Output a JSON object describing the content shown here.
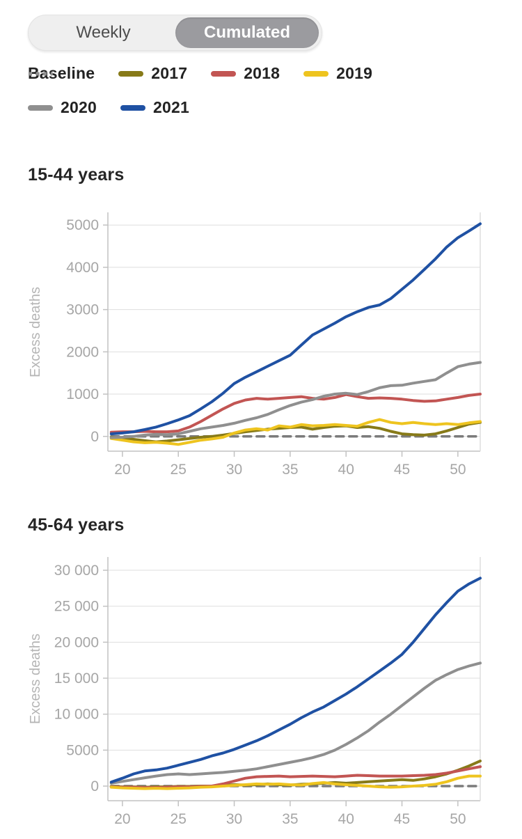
{
  "toggle": {
    "options": [
      {
        "label": "Weekly",
        "selected": false
      },
      {
        "label": "Cumulated",
        "selected": true
      }
    ]
  },
  "legend": {
    "items": [
      {
        "label": "Baseline",
        "color": "#8f8f8f",
        "dashed": true
      },
      {
        "label": "2017",
        "color": "#877a18",
        "dashed": false
      },
      {
        "label": "2018",
        "color": "#c25553",
        "dashed": false
      },
      {
        "label": "2019",
        "color": "#eec41f",
        "dashed": false
      },
      {
        "label": "2020",
        "color": "#8f8f8f",
        "dashed": false
      },
      {
        "label": "2021",
        "color": "#1f51a3",
        "dashed": false
      }
    ]
  },
  "colors": {
    "grid": "#dedede",
    "axis": "#c2c2c2",
    "tick_text": "#a6a6a6",
    "axis_label_text": "#b5b5b5",
    "baseline": "#7b7b7b",
    "title_text": "#252525",
    "toggle_selected_bg": "#9b9b9f",
    "toggle_selected_text": "#ffffff"
  },
  "chart_data": [
    {
      "type": "line",
      "title": "15-44 years",
      "ylabel": "Excess deaths",
      "xlabel": "",
      "grid": true,
      "legend_position": "top",
      "x": [
        19,
        20,
        21,
        22,
        23,
        24,
        25,
        26,
        27,
        28,
        29,
        30,
        31,
        32,
        33,
        34,
        35,
        36,
        37,
        38,
        39,
        40,
        41,
        42,
        43,
        44,
        45,
        46,
        47,
        48,
        49,
        50,
        51,
        52
      ],
      "xlim": [
        18.7,
        52
      ],
      "x_ticks": [
        20,
        25,
        30,
        35,
        40,
        45,
        50
      ],
      "ylim": [
        -350,
        5300
      ],
      "y_ticks": [
        {
          "value": 0,
          "label": "0"
        },
        {
          "value": 1000,
          "label": "1000"
        },
        {
          "value": 2000,
          "label": "2000"
        },
        {
          "value": 3000,
          "label": "3000"
        },
        {
          "value": 4000,
          "label": "4000"
        },
        {
          "value": 5000,
          "label": "5000"
        }
      ],
      "series": [
        {
          "name": "Baseline",
          "color": "#7b7b7b",
          "dashed": true,
          "width": 3.5,
          "values": [
            0,
            0,
            0,
            0,
            0,
            0,
            0,
            0,
            0,
            0,
            0,
            0,
            0,
            0,
            0,
            0,
            0,
            0,
            0,
            0,
            0,
            0,
            0,
            0,
            0,
            0,
            0,
            0,
            0,
            0,
            0,
            0,
            0,
            0
          ]
        },
        {
          "name": "2017",
          "color": "#877a18",
          "dashed": false,
          "width": 4,
          "values": [
            -20,
            -40,
            -70,
            -100,
            -130,
            -110,
            -80,
            -50,
            -20,
            0,
            30,
            70,
            110,
            140,
            170,
            190,
            210,
            220,
            170,
            210,
            240,
            250,
            210,
            230,
            190,
            120,
            60,
            40,
            30,
            60,
            130,
            210,
            290,
            330
          ]
        },
        {
          "name": "2018",
          "color": "#c25553",
          "dashed": false,
          "width": 4,
          "values": [
            100,
            110,
            110,
            120,
            110,
            110,
            130,
            220,
            350,
            500,
            650,
            780,
            860,
            900,
            880,
            900,
            920,
            940,
            900,
            880,
            920,
            990,
            940,
            900,
            910,
            900,
            880,
            850,
            830,
            840,
            880,
            920,
            970,
            1000
          ]
        },
        {
          "name": "2019",
          "color": "#eec41f",
          "dashed": false,
          "width": 4,
          "values": [
            -50,
            -90,
            -130,
            -150,
            -140,
            -160,
            -190,
            -140,
            -90,
            -60,
            -20,
            80,
            150,
            180,
            150,
            250,
            220,
            280,
            250,
            260,
            280,
            260,
            240,
            330,
            400,
            330,
            300,
            330,
            300,
            280,
            300,
            280,
            320,
            350
          ]
        },
        {
          "name": "2020",
          "color": "#8f8f8f",
          "dashed": false,
          "width": 4,
          "values": [
            -30,
            -20,
            0,
            30,
            50,
            40,
            60,
            120,
            180,
            220,
            260,
            310,
            380,
            440,
            520,
            630,
            730,
            810,
            870,
            950,
            1000,
            1020,
            990,
            1060,
            1150,
            1200,
            1210,
            1260,
            1300,
            1340,
            1500,
            1650,
            1710,
            1750
          ]
        },
        {
          "name": "2021",
          "color": "#1f51a3",
          "dashed": false,
          "width": 4,
          "values": [
            60,
            80,
            110,
            160,
            220,
            300,
            390,
            490,
            650,
            820,
            1020,
            1250,
            1400,
            1530,
            1660,
            1790,
            1920,
            2160,
            2400,
            2540,
            2680,
            2830,
            2950,
            3050,
            3110,
            3260,
            3480,
            3700,
            3950,
            4200,
            4480,
            4700,
            4860,
            5030
          ]
        }
      ]
    },
    {
      "type": "line",
      "title": "45-64 years",
      "ylabel": "Excess deaths",
      "xlabel": "",
      "grid": true,
      "legend_position": "top",
      "x": [
        19,
        20,
        21,
        22,
        23,
        24,
        25,
        26,
        27,
        28,
        29,
        30,
        31,
        32,
        33,
        34,
        35,
        36,
        37,
        38,
        39,
        40,
        41,
        42,
        43,
        44,
        45,
        46,
        47,
        48,
        49,
        50,
        51,
        52
      ],
      "xlim": [
        18.7,
        52
      ],
      "x_ticks": [
        20,
        25,
        30,
        35,
        40,
        45,
        50
      ],
      "ylim": [
        -2030,
        31840
      ],
      "y_ticks": [
        {
          "value": 0,
          "label": "0"
        },
        {
          "value": 5000,
          "label": "5000"
        },
        {
          "value": 10000,
          "label": "10 000"
        },
        {
          "value": 15000,
          "label": "15 000"
        },
        {
          "value": 20000,
          "label": "20 000"
        },
        {
          "value": 25000,
          "label": "25 000"
        },
        {
          "value": 30000,
          "label": "30 000"
        }
      ],
      "series": [
        {
          "name": "Baseline",
          "color": "#7b7b7b",
          "dashed": true,
          "width": 3.5,
          "values": [
            0,
            0,
            0,
            0,
            0,
            0,
            0,
            0,
            0,
            0,
            0,
            0,
            0,
            0,
            0,
            0,
            0,
            0,
            0,
            0,
            0,
            0,
            0,
            0,
            0,
            0,
            0,
            0,
            0,
            0,
            0,
            0,
            0,
            0
          ]
        },
        {
          "name": "2017",
          "color": "#877a18",
          "dashed": false,
          "width": 4,
          "values": [
            -50,
            -100,
            -100,
            -150,
            -100,
            -100,
            -50,
            -50,
            0,
            0,
            100,
            200,
            150,
            200,
            300,
            200,
            150,
            250,
            300,
            400,
            500,
            400,
            500,
            600,
            700,
            800,
            900,
            800,
            1000,
            1300,
            1700,
            2200,
            2800,
            3500
          ]
        },
        {
          "name": "2018",
          "color": "#c25553",
          "dashed": false,
          "width": 4,
          "values": [
            -100,
            -150,
            -150,
            -200,
            -200,
            -150,
            -100,
            -100,
            -50,
            0,
            300,
            700,
            1100,
            1300,
            1350,
            1400,
            1300,
            1350,
            1400,
            1350,
            1300,
            1400,
            1500,
            1450,
            1400,
            1400,
            1400,
            1450,
            1500,
            1600,
            1800,
            2100,
            2400,
            2700
          ]
        },
        {
          "name": "2019",
          "color": "#eec41f",
          "dashed": false,
          "width": 4,
          "values": [
            -150,
            -250,
            -300,
            -350,
            -300,
            -350,
            -300,
            -250,
            -150,
            -100,
            0,
            100,
            200,
            300,
            250,
            300,
            200,
            150,
            350,
            500,
            300,
            200,
            100,
            0,
            -100,
            -150,
            -100,
            0,
            100,
            250,
            600,
            1100,
            1400,
            1400
          ]
        },
        {
          "name": "2020",
          "color": "#8f8f8f",
          "dashed": false,
          "width": 4,
          "values": [
            400,
            650,
            900,
            1150,
            1400,
            1600,
            1700,
            1600,
            1700,
            1800,
            1900,
            2050,
            2200,
            2400,
            2700,
            3000,
            3300,
            3600,
            3950,
            4400,
            5000,
            5800,
            6700,
            7700,
            8900,
            10000,
            11200,
            12400,
            13600,
            14700,
            15500,
            16200,
            16700,
            17100
          ]
        },
        {
          "name": "2021",
          "color": "#1f51a3",
          "dashed": false,
          "width": 4,
          "values": [
            550,
            1100,
            1700,
            2100,
            2250,
            2500,
            2900,
            3300,
            3700,
            4200,
            4600,
            5100,
            5700,
            6300,
            7000,
            7800,
            8600,
            9500,
            10300,
            11000,
            11900,
            12800,
            13800,
            14900,
            16000,
            17100,
            18300,
            20000,
            21900,
            23800,
            25500,
            27100,
            28100,
            28900
          ]
        }
      ]
    }
  ]
}
